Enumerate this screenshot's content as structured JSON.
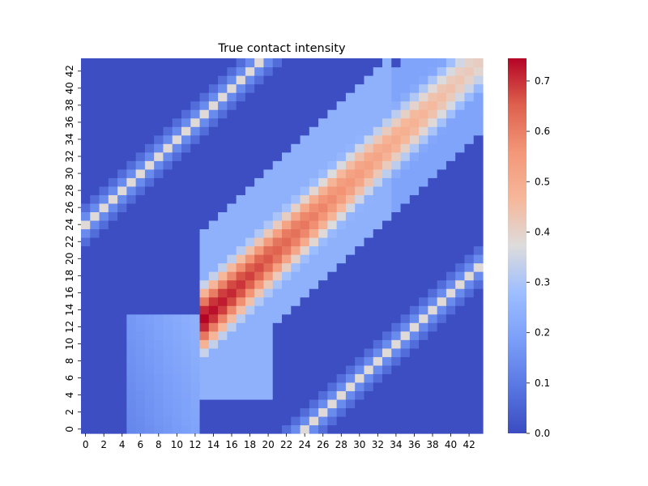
{
  "chart_data": {
    "type": "heatmap",
    "title": "True contact intensity",
    "xlabel": "",
    "ylabel": "",
    "x_size": 44,
    "y_size": 44,
    "x_tick_labels": [
      "0",
      "2",
      "4",
      "6",
      "8",
      "10",
      "12",
      "14",
      "16",
      "18",
      "20",
      "22",
      "24",
      "26",
      "28",
      "30",
      "32",
      "34",
      "36",
      "38",
      "40",
      "42"
    ],
    "y_tick_labels": [
      "0",
      "2",
      "4",
      "6",
      "8",
      "10",
      "12",
      "14",
      "16",
      "18",
      "20",
      "22",
      "24",
      "26",
      "28",
      "30",
      "32",
      "34",
      "36",
      "38",
      "40",
      "42"
    ],
    "y_origin": "bottom",
    "colormap": "coolwarm",
    "colorbar": {
      "vmin": 0.0,
      "vmax": 0.745,
      "ticks": [
        "0.0",
        "0.1",
        "0.2",
        "0.3",
        "0.4",
        "0.5",
        "0.6",
        "0.7"
      ]
    },
    "structure": {
      "peak_value": 0.745,
      "peak_location": {
        "x": 13,
        "y": 13
      },
      "main_ridge": "values peak along diagonal x = y for x in 13..33, rising ~0.45 to 0.745 at x=13 then decaying to ~0.5 at x=33",
      "off_diagonal_lines": [
        {
          "x": 0,
          "y": 24,
          "value": 0.38
        },
        {
          "x": 19,
          "y": 43,
          "value": 0.38
        },
        {
          "x": 24,
          "y": 0,
          "value": 0.38
        },
        {
          "x": 43,
          "y": 19,
          "value": 0.38
        }
      ],
      "plateau_low": {
        "x_range": [
          5,
          12
        ],
        "y_range": [
          0,
          13
        ],
        "value_range": [
          0.15,
          0.22
        ]
      },
      "plateau_mid": {
        "x_range": [
          13,
          20
        ],
        "y_range": [
          4,
          24
        ],
        "value_range": [
          0.2,
          0.3
        ]
      }
    },
    "colors": {
      "low": "#3b4cc0",
      "mid": "#dddddd",
      "high": "#b40426"
    }
  }
}
